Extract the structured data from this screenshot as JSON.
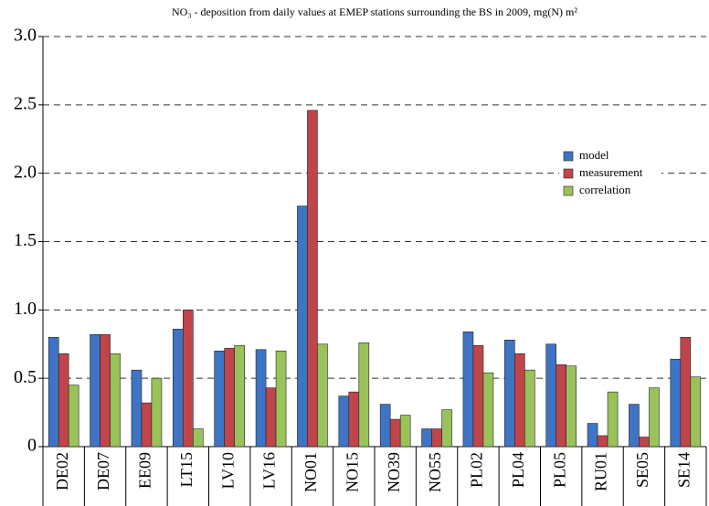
{
  "chart_data": {
    "type": "bar",
    "title": "NO₃ - deposition from daily values at EMEP stations surrounding the BS in 2009, mg(N) m²",
    "categories": [
      "DE02",
      "DE07",
      "EE09",
      "LT15",
      "LV10",
      "LV16",
      "NO01",
      "NO15",
      "NO39",
      "NO55",
      "PL02",
      "PL04",
      "PL05",
      "RU01",
      "SE05",
      "SE14"
    ],
    "series": [
      {
        "name": "model",
        "color": "#3f74c4",
        "values": [
          0.8,
          0.82,
          0.56,
          0.86,
          0.7,
          0.71,
          1.76,
          0.37,
          0.31,
          0.13,
          0.84,
          0.78,
          0.75,
          0.17,
          0.31,
          0.64
        ]
      },
      {
        "name": "measurement",
        "color": "#c0454a",
        "values": [
          0.68,
          0.82,
          0.32,
          1.0,
          0.72,
          0.43,
          2.46,
          0.4,
          0.2,
          0.13,
          0.74,
          0.68,
          0.6,
          0.08,
          0.07,
          0.8
        ]
      },
      {
        "name": "correlation",
        "color": "#99c35a",
        "values": [
          0.45,
          0.68,
          0.5,
          0.13,
          0.74,
          0.7,
          0.75,
          0.76,
          0.23,
          0.27,
          0.54,
          0.56,
          0.59,
          0.4,
          0.43,
          0.51
        ]
      }
    ],
    "ylim": [
      0,
      3
    ],
    "yticks": [
      0,
      0.5,
      {
        "value": 1,
        "label": "1.0"
      },
      1.5,
      {
        "value": 2,
        "label": "2.0"
      },
      2.5,
      {
        "value": 3,
        "label": "3.0"
      }
    ],
    "grid": true,
    "legend": "right"
  }
}
